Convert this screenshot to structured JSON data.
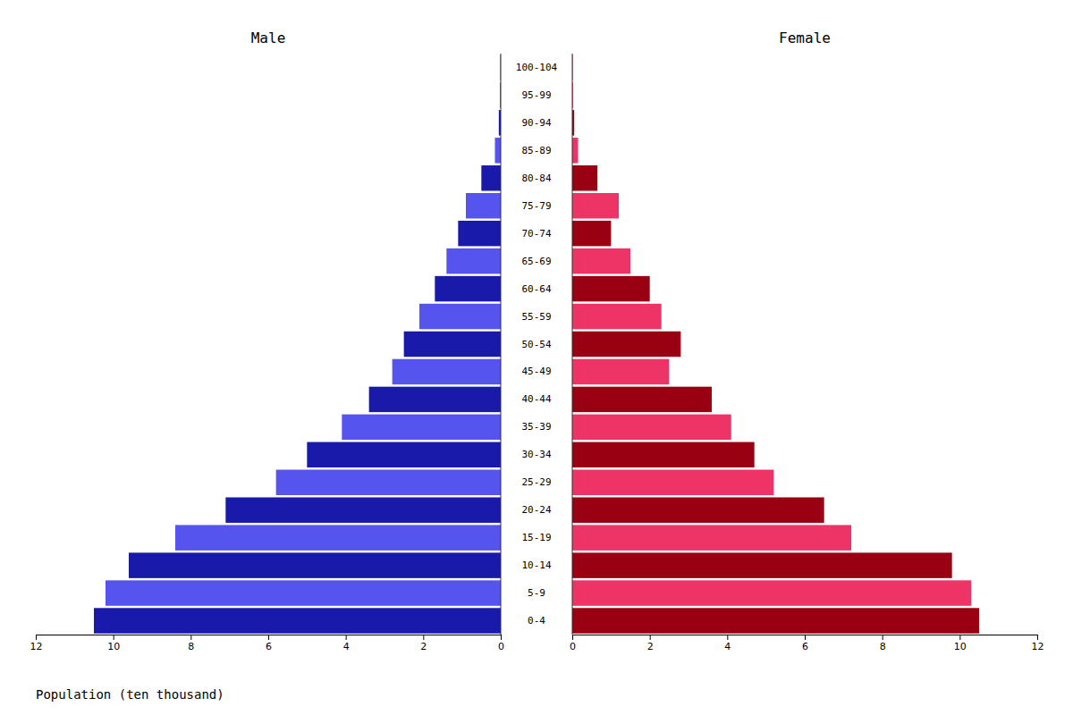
{
  "chart_data": [
    {
      "type": "bar",
      "orientation": "horizontal",
      "title": "Male",
      "xlabel": "Population (ten thousand)",
      "categories": [
        "0-4",
        "5-9",
        "10-14",
        "15-19",
        "20-24",
        "25-29",
        "30-34",
        "35-39",
        "40-44",
        "45-49",
        "50-54",
        "55-59",
        "60-64",
        "65-69",
        "70-74",
        "75-79",
        "80-84",
        "85-89",
        "90-94",
        "95-99",
        "100-104"
      ],
      "values": [
        10.5,
        10.2,
        9.6,
        8.4,
        7.1,
        5.8,
        5.0,
        4.1,
        3.4,
        2.8,
        2.5,
        2.1,
        1.7,
        1.4,
        1.1,
        0.9,
        0.5,
        0.15,
        0.05,
        0.02,
        0.01
      ],
      "colors": [
        "#1a1aaa",
        "#5555ee",
        "#1a1aaa",
        "#5555ee",
        "#1a1aaa",
        "#5555ee",
        "#1a1aaa",
        "#5555ee",
        "#1a1aaa",
        "#5555ee",
        "#1a1aaa",
        "#5555ee",
        "#1a1aaa",
        "#5555ee",
        "#1a1aaa",
        "#5555ee",
        "#1a1aaa",
        "#5555ee",
        "#1a1aaa",
        "#5555ee",
        "#1a1aaa"
      ],
      "xlim": [
        12,
        0
      ],
      "xticks": [
        12,
        10,
        8,
        6,
        4,
        2,
        0
      ],
      "grid": false
    },
    {
      "type": "bar",
      "orientation": "horizontal",
      "title": "Female",
      "categories": [
        "0-4",
        "5-9",
        "10-14",
        "15-19",
        "20-24",
        "25-29",
        "30-34",
        "35-39",
        "40-44",
        "45-49",
        "50-54",
        "55-59",
        "60-64",
        "65-69",
        "70-74",
        "75-79",
        "80-84",
        "85-89",
        "90-94",
        "95-99",
        "100-104"
      ],
      "values": [
        10.5,
        10.3,
        9.8,
        7.2,
        6.5,
        5.2,
        4.7,
        4.1,
        3.6,
        2.5,
        2.8,
        2.3,
        2.0,
        1.5,
        1.0,
        1.2,
        0.65,
        0.15,
        0.05,
        0.02,
        0.01
      ],
      "colors": [
        "#990011",
        "#ee3366",
        "#990011",
        "#ee3366",
        "#990011",
        "#ee3366",
        "#990011",
        "#ee3366",
        "#990011",
        "#ee3366",
        "#990011",
        "#ee3366",
        "#990011",
        "#ee3366",
        "#990011",
        "#ee3366",
        "#990011",
        "#ee3366",
        "#990011",
        "#ee3366",
        "#990011"
      ],
      "xlim": [
        0,
        12
      ],
      "xticks": [
        0,
        2,
        4,
        6,
        8,
        10,
        12
      ],
      "grid": false
    }
  ]
}
